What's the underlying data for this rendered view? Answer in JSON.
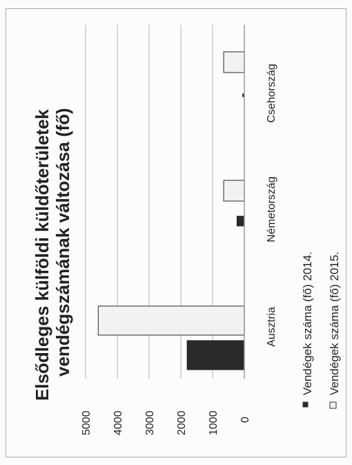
{
  "chart_data": {
    "type": "bar",
    "orientation": "rotated-90-ccw",
    "title": "Elsődleges külföldi küldőterületek vendégszámának változása (fő)",
    "title_lines": [
      "Elsődleges külföldi küldőterületek",
      "vendégszámának változása (fő)"
    ],
    "categories": [
      "Ausztria",
      "Németország",
      "Csehország"
    ],
    "series": [
      {
        "name": "Vendégek száma (fő) 2014.",
        "values": [
          1800,
          230,
          50
        ],
        "color": "#2a2a2a"
      },
      {
        "name": "Vendégek száma (fő) 2015.",
        "values": [
          4600,
          650,
          650
        ],
        "color": "#f2f2f2"
      }
    ],
    "y_ticks": [
      "0",
      "1000",
      "2000",
      "3000",
      "4000",
      "5000"
    ],
    "ylim": [
      0,
      5000
    ],
    "grid": true,
    "legend_position": "bottom"
  }
}
